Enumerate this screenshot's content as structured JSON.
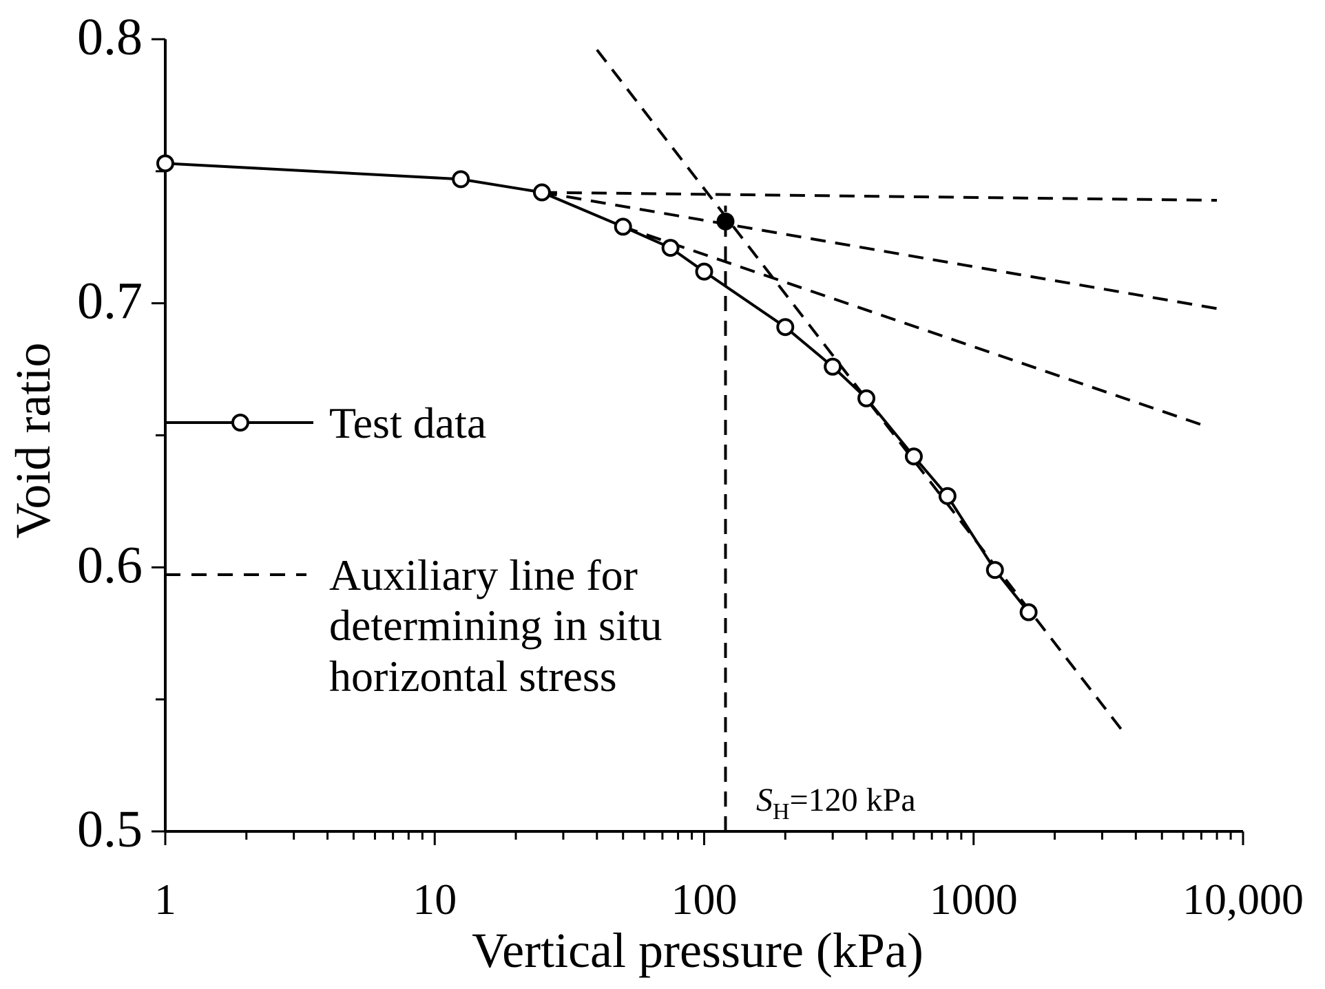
{
  "chart_data": {
    "type": "line",
    "xlabel": "Vertical pressure (kPa)",
    "ylabel": "Void ratio",
    "x_scale": "log",
    "xlim": [
      1,
      10000
    ],
    "ylim": [
      0.5,
      0.8
    ],
    "x_tick_labels": [
      {
        "value": 1,
        "label": "1"
      },
      {
        "value": 10,
        "label": "10"
      },
      {
        "value": 100,
        "label": "100"
      },
      {
        "value": 1000,
        "label": "1000"
      },
      {
        "value": 10000,
        "label": "10,000"
      }
    ],
    "y_tick_labels": [
      {
        "value": 0.5,
        "label": "0.5"
      },
      {
        "value": 0.6,
        "label": "0.6"
      },
      {
        "value": 0.7,
        "label": "0.7"
      },
      {
        "value": 0.8,
        "label": "0.8"
      }
    ],
    "y_minor_ticks": [
      0.55,
      0.65,
      0.75
    ],
    "grid": false,
    "legend_position": "left",
    "series": [
      {
        "name": "Test data",
        "style": "solid-with-open-circles",
        "x": [
          1,
          12.5,
          25,
          50,
          75,
          100,
          200,
          300,
          400,
          600,
          800,
          1200,
          1600
        ],
        "y": [
          0.753,
          0.747,
          0.742,
          0.729,
          0.721,
          0.712,
          0.691,
          0.676,
          0.664,
          0.642,
          0.627,
          0.599,
          0.583
        ]
      },
      {
        "name": "Auxiliary line for determining in situ horizontal stress",
        "style": "dashed",
        "lines": [
          {
            "x": [
              25,
              8000
            ],
            "y": [
              0.742,
              0.739
            ]
          },
          {
            "x": [
              25,
              8000
            ],
            "y": [
              0.742,
              0.698
            ]
          },
          {
            "x": [
              50,
              7500
            ],
            "y": [
              0.729,
              0.653
            ]
          },
          {
            "x": [
              40,
              3700
            ],
            "y": [
              0.796,
              0.536
            ]
          },
          {
            "x": [
              120,
              120
            ],
            "y": [
              0.5,
              0.737
            ]
          }
        ]
      }
    ],
    "points": [
      {
        "x": 120,
        "y": 0.731,
        "marker": "filled-circle"
      }
    ],
    "annotations": [
      {
        "text_italic": "S",
        "text_sub": "H",
        "text": "=120 kPa",
        "x": 120,
        "y": 0.5
      }
    ]
  },
  "legend": {
    "test_data": "Test data",
    "aux_line_1": "Auxiliary line for",
    "aux_line_2": "determining in situ",
    "aux_line_3": "horizontal stress"
  }
}
